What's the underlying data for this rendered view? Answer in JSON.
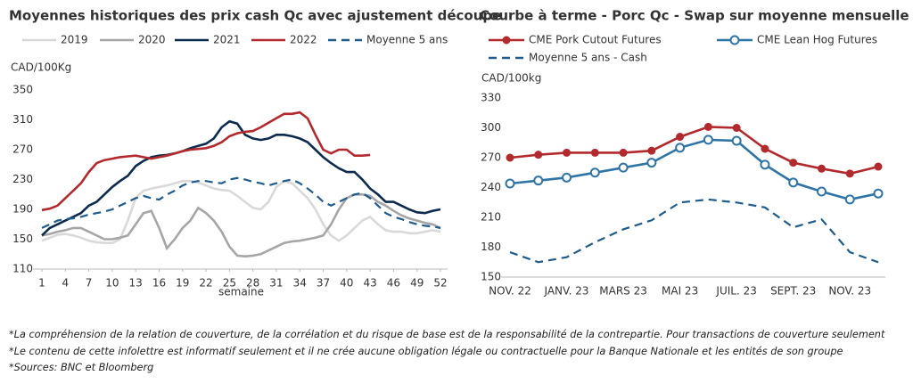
{
  "chart_data": [
    {
      "type": "line",
      "title": "Moyennes historiques des prix cash Qc avec ajustement découpe",
      "ylabel": "CAD/100Kg",
      "xlabel": "semaine",
      "x": [
        1,
        2,
        3,
        4,
        5,
        6,
        7,
        8,
        9,
        10,
        11,
        12,
        13,
        14,
        15,
        16,
        17,
        18,
        19,
        20,
        21,
        22,
        23,
        24,
        25,
        26,
        27,
        28,
        29,
        30,
        31,
        32,
        33,
        34,
        35,
        36,
        37,
        38,
        39,
        40,
        41,
        42,
        43,
        44,
        45,
        46,
        47,
        48,
        49,
        50,
        51,
        52
      ],
      "xlim": [
        1,
        52
      ],
      "xticks": [
        1,
        4,
        7,
        10,
        13,
        16,
        19,
        22,
        25,
        28,
        31,
        34,
        37,
        40,
        43,
        46,
        49,
        52
      ],
      "ylim": [
        110,
        350
      ],
      "yticks": [
        110,
        150,
        190,
        230,
        270,
        310,
        350
      ],
      "grid": false,
      "series": [
        {
          "name": "2019",
          "color": "#d9d9d9",
          "dashed": false,
          "values": [
            148,
            152,
            156,
            157,
            155,
            152,
            148,
            146,
            145,
            145,
            150,
            175,
            205,
            215,
            218,
            220,
            222,
            225,
            228,
            228,
            226,
            222,
            218,
            216,
            215,
            208,
            200,
            192,
            190,
            200,
            220,
            228,
            225,
            215,
            205,
            190,
            170,
            155,
            148,
            155,
            165,
            175,
            180,
            170,
            162,
            160,
            160,
            158,
            158,
            160,
            162,
            160
          ]
        },
        {
          "name": "2020",
          "color": "#a6a6a6",
          "dashed": false,
          "values": [
            155,
            157,
            160,
            162,
            165,
            165,
            160,
            155,
            150,
            150,
            152,
            155,
            170,
            185,
            188,
            165,
            138,
            150,
            165,
            175,
            192,
            185,
            175,
            160,
            140,
            128,
            127,
            128,
            130,
            135,
            140,
            145,
            147,
            148,
            150,
            152,
            155,
            170,
            190,
            205,
            210,
            210,
            208,
            200,
            195,
            188,
            182,
            178,
            175,
            172,
            170,
            165
          ]
        },
        {
          "name": "2021",
          "color": "#0d2b4e",
          "dashed": false,
          "values": [
            155,
            165,
            170,
            175,
            180,
            185,
            195,
            200,
            210,
            220,
            228,
            235,
            248,
            255,
            260,
            262,
            263,
            265,
            268,
            272,
            275,
            278,
            285,
            300,
            308,
            305,
            290,
            285,
            283,
            285,
            290,
            290,
            288,
            285,
            280,
            270,
            260,
            252,
            245,
            240,
            240,
            230,
            218,
            210,
            200,
            200,
            195,
            190,
            186,
            185,
            188,
            190
          ]
        },
        {
          "name": "2022",
          "color": "#b22a2e",
          "dashed": false,
          "values": [
            189,
            191,
            195,
            205,
            215,
            225,
            240,
            252,
            256,
            258,
            260,
            261,
            262,
            260,
            258,
            260,
            262,
            265,
            268,
            270,
            271,
            272,
            275,
            280,
            288,
            292,
            294,
            295,
            300,
            306,
            312,
            318,
            318,
            320,
            312,
            290,
            270,
            265,
            270,
            270,
            262,
            262,
            263,
            null,
            null,
            null,
            null,
            null,
            null,
            null,
            null,
            null
          ]
        },
        {
          "name": "Moyenne 5 ans",
          "color": "#1f5c8b",
          "dashed": true,
          "values": [
            165,
            170,
            175,
            177,
            178,
            180,
            183,
            185,
            187,
            190,
            195,
            200,
            205,
            208,
            205,
            203,
            210,
            215,
            222,
            226,
            228,
            228,
            226,
            225,
            230,
            232,
            230,
            227,
            225,
            222,
            225,
            228,
            230,
            225,
            218,
            210,
            200,
            195,
            200,
            205,
            210,
            212,
            205,
            195,
            185,
            180,
            177,
            173,
            170,
            168,
            167,
            165
          ]
        }
      ]
    },
    {
      "type": "line",
      "title": "Courbe à terme - Porc Qc - Swap sur moyenne mensuelle",
      "ylabel": "CAD/100kg",
      "categories": [
        "NOV. 22",
        null,
        "JANV. 23",
        null,
        "MARS 23",
        null,
        "MAI 23",
        null,
        "JUIL. 23",
        null,
        "SEPT. 23",
        null,
        "NOV. 23",
        null
      ],
      "ylim": [
        150,
        330
      ],
      "yticks": [
        150,
        180,
        210,
        240,
        270,
        300,
        330
      ],
      "grid": false,
      "series": [
        {
          "name": "CME Pork Cutout Futures",
          "color": "#b22a2e",
          "dashed": false,
          "marker": "filled",
          "values": [
            270,
            273,
            275,
            275,
            275,
            277,
            291,
            301,
            300,
            279,
            265,
            259,
            254,
            261
          ]
        },
        {
          "name": "CME Lean Hog Futures",
          "color": "#2e75a6",
          "dashed": false,
          "marker": "open",
          "values": [
            244,
            247,
            250,
            255,
            260,
            265,
            280,
            288,
            287,
            263,
            245,
            236,
            228,
            234
          ]
        },
        {
          "name": "Moyenne 5 ans - Cash",
          "color": "#1f5c8b",
          "dashed": true,
          "values": [
            175,
            165,
            170,
            185,
            198,
            207,
            225,
            228,
            225,
            220,
            200,
            208,
            175,
            165
          ]
        }
      ]
    }
  ],
  "footnotes": [
    "*La compréhension de la relation de couverture, de la corrélation et du risque de base est de la responsabilité de la contrepartie. Pour transactions de couverture seulement",
    "*Le contenu de cette infolettre est informatif seulement et il ne crée aucune obligation légale ou contractuelle pour la Banque Nationale et les entités de son groupe",
    "*Sources: BNC et Bloomberg"
  ]
}
